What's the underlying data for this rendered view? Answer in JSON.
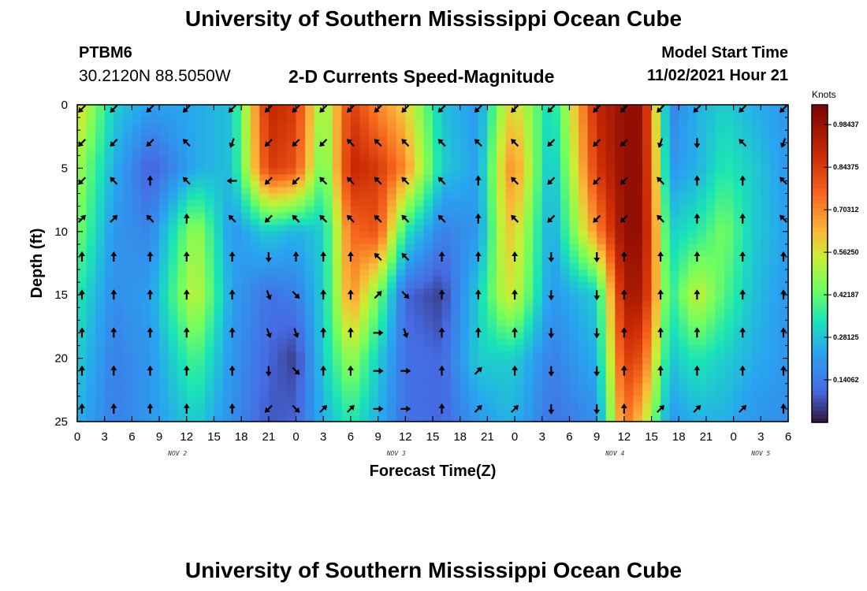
{
  "header": {
    "title": "University of Southern Mississippi Ocean Cube",
    "station_id": "PTBM6",
    "station_location": "30.2120N  88.5050W",
    "plot_title": "2-D Currents Speed-Magnitude",
    "model_start_label": "Model Start Time",
    "model_start_value": "11/02/2021 Hour 21"
  },
  "footer": {
    "title": "University of Southern Mississippi Ocean Cube"
  },
  "chart_data": {
    "type": "heatmap",
    "title": "2-D Currents Speed-Magnitude",
    "xlabel": "Forecast Time(Z)",
    "ylabel": "Depth (ft)",
    "colorbar_title": "Knots",
    "colorbar_ticks": [
      "0.98437",
      "0.84375",
      "0.70312",
      "0.56250",
      "0.42187",
      "0.28125",
      "0.14062"
    ],
    "colorbar_range": [
      0,
      1.05
    ],
    "xlim": [
      0,
      78
    ],
    "ylim": [
      25,
      0
    ],
    "x_tick_labels": [
      "0",
      "3",
      "6",
      "9",
      "12",
      "15",
      "18",
      "21",
      "0",
      "3",
      "6",
      "9",
      "12",
      "15",
      "18",
      "21",
      "0",
      "3",
      "6",
      "9",
      "12",
      "15",
      "18",
      "21",
      "0",
      "3",
      "6"
    ],
    "y_ticks": [
      0,
      5,
      10,
      15,
      20,
      25
    ],
    "y_tick_labels": [
      "0",
      "5",
      "10",
      "15",
      "20",
      "25"
    ],
    "day_labels": [
      {
        "label": "NOV 2",
        "hour": 11
      },
      {
        "label": "NOV 3",
        "hour": 35
      },
      {
        "label": "NOV 4",
        "hour": 59
      },
      {
        "label": "NOV 5",
        "hour": 75
      }
    ],
    "speed_hours": [
      0,
      4,
      8,
      13,
      17,
      21,
      24,
      27,
      30,
      33,
      36,
      40,
      44,
      47,
      48,
      52,
      57,
      60,
      62,
      65,
      68,
      71,
      74,
      78
    ],
    "speed_depths": [
      0,
      5,
      10,
      15,
      20,
      25
    ],
    "speed_knots": [
      [
        0.6,
        0.3,
        0.22,
        0.24,
        0.28,
        0.9,
        0.85,
        0.45,
        0.85,
        0.7,
        0.6,
        0.28,
        0.2,
        0.55,
        0.6,
        0.3,
        0.9,
        1.0,
        1.0,
        0.15,
        0.25,
        0.3,
        0.25,
        0.2
      ],
      [
        0.5,
        0.25,
        0.08,
        0.24,
        0.28,
        0.85,
        0.8,
        0.4,
        0.9,
        0.85,
        0.7,
        0.3,
        0.22,
        0.65,
        0.7,
        0.25,
        0.85,
        1.0,
        1.0,
        0.2,
        0.25,
        0.35,
        0.3,
        0.2
      ],
      [
        0.45,
        0.2,
        0.16,
        0.5,
        0.2,
        0.3,
        0.25,
        0.3,
        0.75,
        0.8,
        0.35,
        0.15,
        0.2,
        0.6,
        0.6,
        0.22,
        0.7,
        1.0,
        1.0,
        0.3,
        0.35,
        0.45,
        0.3,
        0.22
      ],
      [
        0.35,
        0.18,
        0.22,
        0.55,
        0.22,
        0.12,
        0.15,
        0.3,
        0.7,
        0.45,
        0.1,
        0.05,
        0.3,
        0.55,
        0.55,
        0.2,
        0.3,
        0.95,
        0.95,
        0.35,
        0.55,
        0.4,
        0.28,
        0.2
      ],
      [
        0.3,
        0.15,
        0.2,
        0.4,
        0.2,
        0.1,
        0.05,
        0.3,
        0.5,
        0.3,
        0.12,
        0.1,
        0.3,
        0.3,
        0.3,
        0.15,
        0.25,
        0.85,
        0.8,
        0.28,
        0.35,
        0.3,
        0.25,
        0.2
      ],
      [
        0.25,
        0.15,
        0.2,
        0.3,
        0.18,
        0.08,
        0.1,
        0.25,
        0.35,
        0.25,
        0.12,
        0.1,
        0.2,
        0.25,
        0.25,
        0.12,
        0.18,
        0.75,
        0.6,
        0.2,
        0.25,
        0.25,
        0.2,
        0.18
      ]
    ],
    "vector_hours": [
      0,
      4,
      8,
      12,
      17,
      21,
      24,
      27,
      30,
      33,
      36,
      40,
      44,
      48,
      52,
      57,
      60,
      64,
      68,
      73,
      78
    ],
    "vector_depths": [
      0,
      3,
      6,
      9,
      12,
      15,
      18,
      21,
      24
    ],
    "vector_angles_deg": [
      [
        225,
        225,
        225,
        225,
        225,
        225,
        225,
        225,
        225,
        225,
        225,
        225,
        225,
        225,
        225,
        225,
        225,
        225,
        225,
        225,
        225
      ],
      [
        225,
        225,
        225,
        315,
        200,
        225,
        225,
        225,
        315,
        315,
        315,
        315,
        315,
        315,
        225,
        225,
        225,
        200,
        180,
        315,
        200
      ],
      [
        225,
        315,
        0,
        315,
        270,
        225,
        225,
        315,
        315,
        315,
        315,
        315,
        0,
        315,
        225,
        225,
        225,
        315,
        0,
        0,
        315
      ],
      [
        45,
        45,
        315,
        0,
        315,
        225,
        315,
        315,
        315,
        315,
        315,
        315,
        0,
        315,
        225,
        225,
        225,
        315,
        0,
        0,
        315
      ],
      [
        0,
        0,
        0,
        0,
        0,
        180,
        0,
        0,
        0,
        315,
        315,
        0,
        0,
        0,
        180,
        180,
        0,
        0,
        0,
        0,
        0
      ],
      [
        0,
        0,
        0,
        0,
        0,
        160,
        135,
        0,
        0,
        45,
        135,
        0,
        0,
        0,
        180,
        180,
        0,
        0,
        0,
        0,
        0
      ],
      [
        0,
        0,
        0,
        0,
        0,
        160,
        160,
        0,
        0,
        90,
        160,
        0,
        0,
        0,
        180,
        180,
        0,
        0,
        0,
        0,
        0
      ],
      [
        0,
        0,
        0,
        0,
        0,
        180,
        135,
        0,
        0,
        90,
        90,
        0,
        45,
        0,
        180,
        180,
        0,
        0,
        0,
        0,
        0
      ],
      [
        0,
        0,
        0,
        0,
        0,
        225,
        135,
        45,
        45,
        90,
        90,
        0,
        45,
        45,
        180,
        180,
        0,
        45,
        45,
        45,
        0
      ]
    ]
  }
}
